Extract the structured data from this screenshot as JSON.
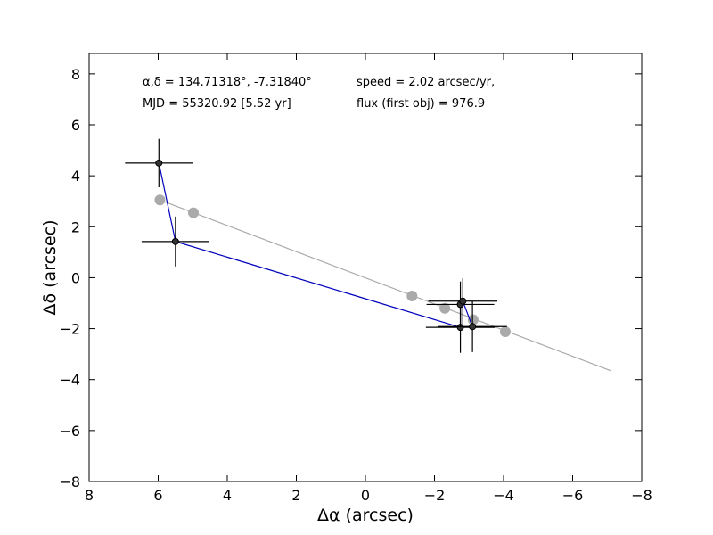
{
  "chart_data": {
    "type": "scatter",
    "xlabel": "Δα (arcsec)",
    "ylabel": "Δδ (arcsec)",
    "xlim": [
      8,
      -8
    ],
    "ylim": [
      -8,
      8.8
    ],
    "x_ticks": [
      "8",
      "6",
      "4",
      "2",
      "0",
      "−2",
      "−4",
      "−6",
      "−8"
    ],
    "x_tick_values": [
      8,
      6,
      4,
      2,
      0,
      -2,
      -4,
      -6,
      -8
    ],
    "y_ticks": [
      "8",
      "6",
      "4",
      "2",
      "0",
      "−2",
      "−4",
      "−6",
      "−8"
    ],
    "y_tick_values": [
      8,
      6,
      4,
      2,
      0,
      -2,
      -4,
      -6,
      -8
    ],
    "grid": false,
    "annotations": [
      {
        "text": "α,δ = 134.71318°, -7.31840°"
      },
      {
        "text": "speed = 2.02 arcsec/yr,"
      },
      {
        "text": "MJD = 55320.92 [5.52 yr]"
      },
      {
        "text": "flux (first obj) = 976.9"
      }
    ],
    "series": [
      {
        "kind": "model_fit_line",
        "color": "#aaaaaa",
        "points": [
          [
            5.95,
            3.05
          ],
          [
            -7.1,
            -3.65
          ]
        ]
      },
      {
        "kind": "model_positions",
        "color": "#aaaaaa",
        "points": [
          [
            5.95,
            3.05
          ],
          [
            4.98,
            2.55
          ],
          [
            -1.35,
            -0.72
          ],
          [
            -2.3,
            -1.2
          ],
          [
            -3.12,
            -1.65
          ],
          [
            -4.05,
            -2.12
          ]
        ]
      },
      {
        "kind": "observed_path",
        "color": "#0000bb",
        "points": [
          [
            5.98,
            4.5
          ],
          [
            5.5,
            1.42
          ],
          [
            -2.75,
            -1.95
          ],
          [
            -2.75,
            -1.05
          ],
          [
            -2.82,
            -0.92
          ],
          [
            -3.1,
            -1.92
          ]
        ]
      },
      {
        "kind": "observed_positions_with_errors",
        "color": "#000000",
        "points": [
          {
            "x": 5.98,
            "y": 4.5,
            "xerr": 0.98,
            "yerr": 0.95
          },
          {
            "x": 5.5,
            "y": 1.42,
            "xerr": 0.98,
            "yerr": 0.98
          },
          {
            "x": -2.75,
            "y": -1.95,
            "xerr": 1.0,
            "yerr": 1.0
          },
          {
            "x": -2.75,
            "y": -1.05,
            "xerr": 0.98,
            "yerr": 0.9
          },
          {
            "x": -2.82,
            "y": -0.92,
            "xerr": 1.0,
            "yerr": 0.9
          },
          {
            "x": -3.1,
            "y": -1.92,
            "xerr": 1.0,
            "yerr": 1.0
          }
        ]
      }
    ]
  }
}
